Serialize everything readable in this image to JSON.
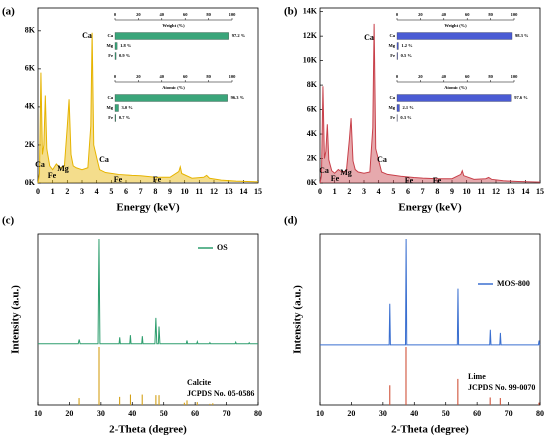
{
  "chart_data": [
    {
      "type": "area",
      "panel_label": "(a)",
      "x_label": "Energy (keV)",
      "color": "#e6b400",
      "x": [
        0,
        0.1,
        0.2,
        0.3,
        0.4,
        0.5,
        0.6,
        0.8,
        1.0,
        1.25,
        1.5,
        1.8,
        2.0,
        2.12,
        2.25,
        2.4,
        2.6,
        3.0,
        3.4,
        3.6,
        3.69,
        3.8,
        4.01,
        4.2,
        4.6,
        5.5,
        6.4,
        7.0,
        8.0,
        9.0,
        9.6,
        9.7,
        9.8,
        10.5,
        11.3,
        11.5,
        11.7,
        12.5,
        13.5,
        15
      ],
      "values": [
        0,
        500,
        5800,
        1500,
        2000,
        4600,
        1800,
        900,
        700,
        1000,
        800,
        900,
        3000,
        4400,
        1500,
        900,
        800,
        700,
        800,
        3000,
        7900,
        2000,
        1300,
        700,
        550,
        450,
        400,
        380,
        300,
        300,
        600,
        850,
        500,
        250,
        300,
        400,
        250,
        150,
        100,
        60
      ],
      "xlim": [
        0,
        15
      ],
      "xticks": [
        0,
        1,
        2,
        3,
        4,
        5,
        6,
        7,
        8,
        9,
        10,
        11,
        12,
        13,
        14,
        15
      ],
      "ylim": [
        0,
        9200
      ],
      "yticks": [
        {
          "value": 0,
          "label": "0K"
        },
        {
          "value": 2000,
          "label": "2K"
        },
        {
          "value": 4000,
          "label": "4K"
        },
        {
          "value": 6000,
          "label": "6K"
        },
        {
          "value": 8000,
          "label": "8K"
        }
      ],
      "annotations": [
        "Ca",
        "Fe",
        "Mg",
        "Ca",
        "Ca",
        "Fe",
        "Fe"
      ]
    },
    {
      "type": "bar",
      "title": "Weight (%)",
      "color": "#3aa57a",
      "categories": [
        "Ca",
        "Mg",
        "Fe"
      ],
      "values": [
        97.2,
        1.8,
        0.9
      ],
      "value_labels": [
        "97.2 %",
        "1.8 %",
        "0.9 %"
      ],
      "xlim": [
        0,
        100
      ],
      "xticks": [
        0,
        20,
        40,
        60,
        80,
        100
      ]
    },
    {
      "type": "bar",
      "title": "Atomic (%)",
      "color": "#3aa57a",
      "categories": [
        "Ca",
        "Mg",
        "Fe"
      ],
      "values": [
        96.3,
        3.0,
        0.7
      ],
      "value_labels": [
        "96.3 %",
        "3.0 %",
        "0.7 %"
      ],
      "xlim": [
        0,
        100
      ],
      "xticks": [
        0,
        20,
        40,
        60,
        80,
        100
      ]
    },
    {
      "type": "area",
      "panel_label": "(b)",
      "x_label": "Energy (keV)",
      "color": "#c8404a",
      "x": [
        0,
        0.1,
        0.2,
        0.3,
        0.4,
        0.5,
        0.6,
        0.8,
        1.0,
        1.25,
        1.5,
        1.8,
        2.0,
        2.12,
        2.25,
        2.4,
        2.6,
        3.0,
        3.4,
        3.6,
        3.69,
        3.8,
        4.01,
        4.2,
        4.6,
        5.5,
        6.4,
        7.0,
        8.0,
        9.0,
        9.6,
        9.7,
        9.8,
        10.5,
        11.3,
        11.5,
        11.7,
        12.5,
        13.5,
        15
      ],
      "values": [
        0,
        600,
        7900,
        2000,
        2600,
        4800,
        1900,
        1000,
        800,
        1100,
        900,
        1000,
        3500,
        5300,
        1800,
        1100,
        900,
        800,
        900,
        4500,
        13000,
        2800,
        1800,
        900,
        700,
        550,
        450,
        400,
        350,
        350,
        700,
        1000,
        600,
        300,
        350,
        450,
        300,
        180,
        120,
        70
      ],
      "xlim": [
        0,
        15
      ],
      "xticks": [
        0,
        1,
        2,
        3,
        4,
        5,
        6,
        7,
        8,
        9,
        10,
        11,
        12,
        13,
        14,
        15
      ],
      "ylim": [
        0,
        14300
      ],
      "yticks": [
        {
          "value": 0,
          "label": "0K"
        },
        {
          "value": 2000,
          "label": "2K"
        },
        {
          "value": 4000,
          "label": "4K"
        },
        {
          "value": 6000,
          "label": "6K"
        },
        {
          "value": 8000,
          "label": "8K"
        },
        {
          "value": 10000,
          "label": "10K"
        },
        {
          "value": 12000,
          "label": "12K"
        },
        {
          "value": 14000,
          "label": "14K"
        }
      ],
      "annotations": [
        "Ca",
        "Fe",
        "Mg",
        "Ca",
        "Ca",
        "Fe",
        "Fe"
      ]
    },
    {
      "type": "bar",
      "title": "Weight (%)",
      "color": "#4a5bd4",
      "categories": [
        "Ca",
        "Mg",
        "Fe"
      ],
      "values": [
        98.3,
        1.2,
        0.5
      ],
      "value_labels": [
        "98.3 %",
        "1.2 %",
        "0.5 %"
      ],
      "xlim": [
        0,
        100
      ],
      "xticks": [
        0,
        20,
        40,
        60,
        80,
        100
      ]
    },
    {
      "type": "bar",
      "title": "Atomic (%)",
      "color": "#4a5bd4",
      "categories": [
        "Ca",
        "Mg",
        "Fe"
      ],
      "values": [
        97.6,
        2.1,
        0.3
      ],
      "value_labels": [
        "97.6 %",
        "2.1 %",
        "0.3 %"
      ],
      "xlim": [
        0,
        100
      ],
      "xticks": [
        0,
        20,
        40,
        60,
        80,
        100
      ]
    },
    {
      "type": "line",
      "panel_label": "(c)",
      "x_label": "2-Theta (degree)",
      "y_label": "Intensity (a.u.)",
      "x": [
        10,
        22.8,
        23.1,
        23.4,
        29.1,
        29.4,
        29.7,
        35.8,
        36.0,
        36.2,
        39.2,
        39.4,
        39.6,
        43.0,
        43.2,
        43.4,
        47.2,
        47.5,
        47.8,
        48.3,
        48.5,
        48.8,
        57.2,
        57.4,
        57.6,
        60.5,
        60.7,
        60.9,
        64.5,
        64.7,
        64.9,
        72.7,
        72.9,
        73.1,
        77.0,
        77.2,
        77.4,
        80
      ],
      "series": [
        {
          "name": "OS",
          "color": "#2e9e6e",
          "values": [
            3,
            3,
            7,
            3,
            3,
            100,
            3,
            3,
            9,
            3,
            3,
            11,
            3,
            3,
            10,
            3,
            3,
            27,
            3,
            3,
            19,
            3,
            3,
            6,
            3,
            3,
            5,
            3,
            3,
            4,
            3,
            3,
            4.5,
            3,
            3,
            4,
            3,
            3
          ]
        }
      ],
      "reference": {
        "name": "Calcite",
        "label": "JCPDS No. 05-0586",
        "color": "#d4a017",
        "x": [
          23.06,
          29.41,
          35.97,
          39.42,
          43.16,
          47.51,
          48.51,
          56.57,
          57.41,
          60.68,
          64.68,
          65.62
        ],
        "values": [
          12,
          100,
          14,
          18,
          18,
          17,
          17,
          4,
          8,
          5,
          2,
          3
        ]
      },
      "xlim": [
        10,
        80
      ],
      "xticks": [
        10,
        20,
        30,
        40,
        50,
        60,
        70,
        80
      ],
      "ylim": [
        0,
        100
      ]
    },
    {
      "type": "line",
      "panel_label": "(d)",
      "x_label": "2-Theta (degree)",
      "y_label": "Intensity (a.u.)",
      "x": [
        10,
        32.0,
        32.2,
        32.4,
        37.2,
        37.4,
        37.6,
        53.7,
        53.9,
        54.1,
        64.0,
        64.2,
        64.4,
        67.2,
        67.4,
        67.6,
        79.5,
        79.7,
        79.9,
        80
      ],
      "series": [
        {
          "name": "MOS-800",
          "color": "#3a6fd0",
          "values": [
            2,
            2,
            40,
            2,
            2,
            100,
            2,
            2,
            54,
            2,
            2,
            16,
            2,
            2,
            13,
            2,
            2,
            6,
            2,
            2
          ]
        }
      ],
      "reference": {
        "name": "Lime",
        "label": "JCPDS No. 99-0070",
        "color": "#d0533a",
        "x": [
          32.2,
          37.36,
          53.86,
          64.15,
          67.38,
          79.67
        ],
        "values": [
          34,
          100,
          45,
          13,
          12,
          4
        ]
      },
      "xlim": [
        10,
        80
      ],
      "xticks": [
        10,
        20,
        30,
        40,
        50,
        60,
        70,
        80
      ],
      "ylim": [
        0,
        100
      ]
    }
  ]
}
